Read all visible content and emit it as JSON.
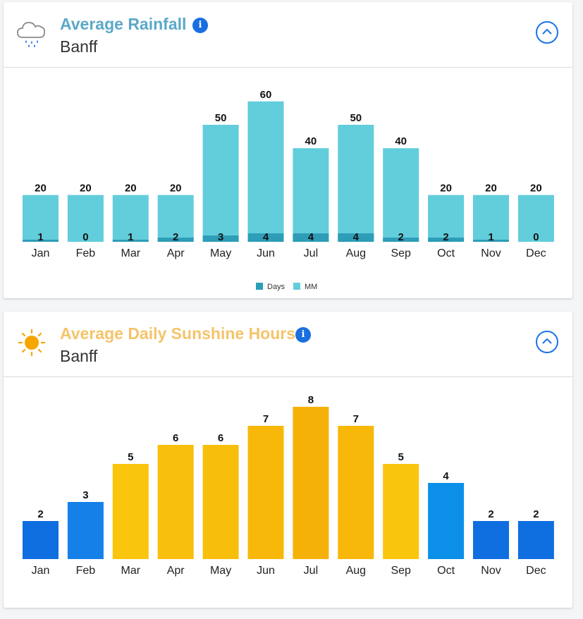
{
  "rainfall": {
    "title": "Average Rainfall",
    "subtitle": "Banff",
    "info_icon": "info-icon",
    "icon": "rain-cloud-icon",
    "collapse_icon": "chevron-up-icon",
    "colors": {
      "title": "#5aa8c8",
      "mm": "#62cddb",
      "days": "#2d9db8"
    }
  },
  "sunshine": {
    "title": "Average Daily Sunshine Hours",
    "subtitle": "Banff",
    "info_icon": "info-icon",
    "icon": "sun-icon",
    "collapse_icon": "chevron-up-icon",
    "colors": {
      "title": "#f5c46a"
    }
  },
  "chart_data": [
    {
      "type": "bar",
      "categories": [
        "Jan",
        "Feb",
        "Mar",
        "Apr",
        "May",
        "Jun",
        "Jul",
        "Aug",
        "Sep",
        "Oct",
        "Nov",
        "Dec"
      ],
      "series": [
        {
          "name": "Days",
          "values": [
            1,
            0,
            1,
            2,
            3,
            4,
            4,
            4,
            2,
            2,
            1,
            0
          ],
          "color": "#2d9db8"
        },
        {
          "name": "MM",
          "values": [
            20,
            20,
            20,
            20,
            50,
            60,
            40,
            50,
            40,
            20,
            20,
            20
          ],
          "color": "#62cddb"
        }
      ],
      "legend": "bottom-center",
      "grid": false
    },
    {
      "type": "bar",
      "categories": [
        "Jan",
        "Feb",
        "Mar",
        "Apr",
        "May",
        "Jun",
        "Jul",
        "Aug",
        "Sep",
        "Oct",
        "Nov",
        "Dec"
      ],
      "values": [
        2,
        3,
        5,
        6,
        6,
        7,
        8,
        7,
        5,
        4,
        2,
        2
      ],
      "colors": [
        "#0f6fe0",
        "#1580e8",
        "#f9c50d",
        "#f8c00c",
        "#f8be0c",
        "#f7b80a",
        "#f6b108",
        "#f7b80a",
        "#f9c50d",
        "#0c8fe8",
        "#0f6fe0",
        "#0f6fe0"
      ],
      "grid": false
    }
  ]
}
